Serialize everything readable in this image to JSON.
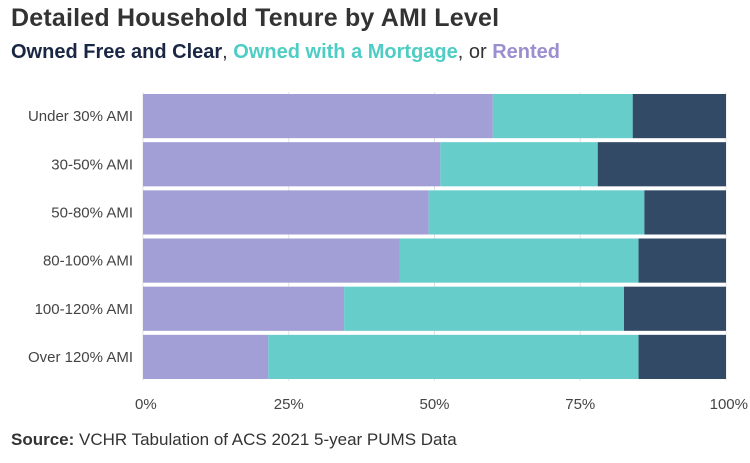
{
  "chart_data": {
    "type": "bar",
    "orientation": "horizontal",
    "stacked": true,
    "title": "Detailed Household Tenure by AMI Level",
    "subtitle": {
      "parts": [
        {
          "text": "Owned Free and Clear",
          "color": "#1a2744",
          "bold": true
        },
        {
          "text": ", ",
          "color": "#333333",
          "bold": false
        },
        {
          "text": "Owned with a Mortgage",
          "color": "#4ecdc4",
          "bold": true
        },
        {
          "text": ", or ",
          "color": "#333333",
          "bold": false
        },
        {
          "text": "Rented",
          "color": "#9b8fd0",
          "bold": true
        }
      ]
    },
    "categories": [
      "Under 30% AMI",
      "30-50% AMI",
      "50-80% AMI",
      "80-100% AMI",
      "100-120% AMI",
      "Over 120% AMI"
    ],
    "series": [
      {
        "name": "Rented",
        "color": "#a29ed6",
        "values": [
          60,
          51,
          49,
          44,
          34.5,
          21.5
        ]
      },
      {
        "name": "Owned with a Mortgage",
        "color": "#66cdcb",
        "values": [
          24,
          27,
          37,
          41,
          48,
          63.5
        ]
      },
      {
        "name": "Owned Free and Clear",
        "color": "#324a66",
        "values": [
          16,
          22,
          14,
          15,
          17.5,
          15
        ]
      }
    ],
    "xlim": [
      0,
      100
    ],
    "xticks": [
      "0%",
      "25%",
      "50%",
      "75%",
      "100%"
    ],
    "xtick_values": [
      0,
      25,
      50,
      75,
      100
    ],
    "xlabel": "",
    "ylabel": "",
    "grid": true
  },
  "source": {
    "label": "Source:",
    "text": " VCHR Tabulation of ACS 2021 5-year PUMS Data"
  }
}
